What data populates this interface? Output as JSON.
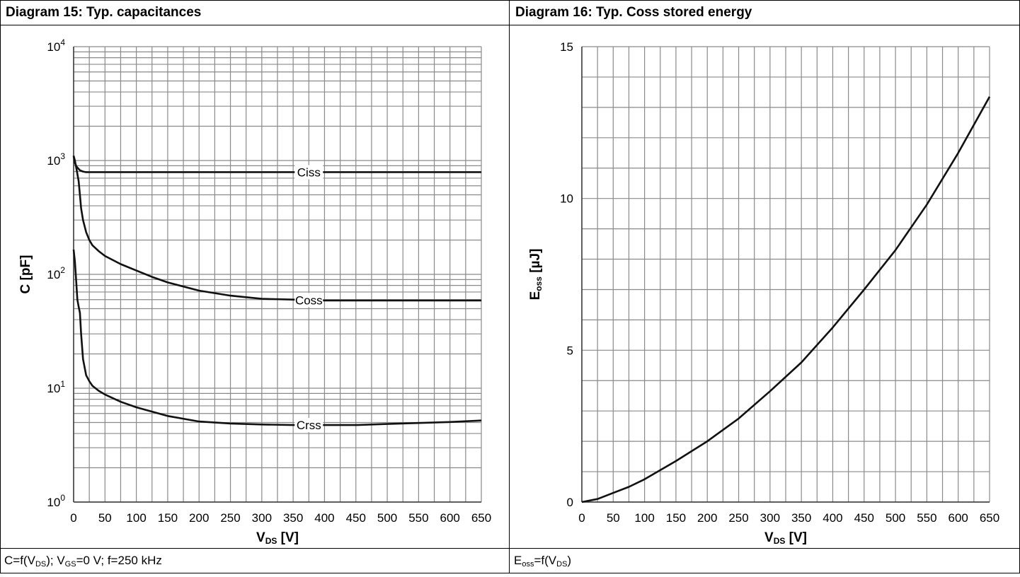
{
  "left_panel": {
    "title": "Diagram 15: Typ. capacitances",
    "caption": {
      "p1": "C=f(V",
      "sub1": "DS",
      "p2": "); V",
      "sub2": "GS",
      "p3": "=0 V; f=250 kHz"
    }
  },
  "right_panel": {
    "title": "Diagram 16: Typ. Coss stored energy",
    "caption": {
      "p1": "E",
      "sub1": "oss",
      "p2": "=f(V",
      "sub2": "DS",
      "p3": ")"
    }
  },
  "chart_data": [
    {
      "type": "line",
      "title": "Diagram 15: Typ. capacitances",
      "xlabel": {
        "main": "V",
        "sub": "DS",
        "rest": " [V]"
      },
      "ylabel": "C [pF]",
      "xlim": [
        0,
        650
      ],
      "ylim": [
        1,
        10000
      ],
      "yscale": "log",
      "grid": true,
      "x_ticks": [
        0,
        50,
        100,
        150,
        200,
        250,
        300,
        350,
        400,
        450,
        500,
        550,
        600,
        650
      ],
      "y_ticks": [
        {
          "base": "10",
          "exp": "0"
        },
        {
          "base": "10",
          "exp": "1"
        },
        {
          "base": "10",
          "exp": "2"
        },
        {
          "base": "10",
          "exp": "3"
        },
        {
          "base": "10",
          "exp": "4"
        }
      ],
      "series": [
        {
          "name": "Ciss",
          "label_x": 375,
          "x": [
            0,
            2,
            5,
            10,
            15,
            20,
            25,
            30,
            50,
            100,
            200,
            300,
            400,
            500,
            600,
            650
          ],
          "y": [
            1100,
            950,
            880,
            820,
            800,
            790,
            790,
            790,
            790,
            790,
            790,
            790,
            790,
            790,
            790,
            790
          ]
        },
        {
          "name": "Coss",
          "label_x": 375,
          "x": [
            0,
            2,
            5,
            8,
            10,
            12,
            15,
            20,
            25,
            30,
            40,
            50,
            75,
            100,
            125,
            150,
            200,
            250,
            300,
            350,
            400,
            450,
            500,
            550,
            600,
            650
          ],
          "y": [
            1100,
            1000,
            820,
            660,
            500,
            380,
            300,
            235,
            200,
            180,
            160,
            145,
            123,
            108,
            95,
            85,
            72,
            65,
            61,
            60,
            59,
            59,
            59,
            59,
            59,
            59
          ]
        },
        {
          "name": "Crss",
          "label_x": 375,
          "x": [
            0,
            2,
            4,
            6,
            8,
            10,
            12,
            15,
            20,
            25,
            30,
            40,
            50,
            75,
            100,
            150,
            200,
            250,
            300,
            350,
            400,
            450,
            500,
            550,
            600,
            650
          ],
          "y": [
            165,
            130,
            90,
            60,
            52,
            46,
            30,
            18,
            13,
            11.5,
            10.5,
            9.5,
            8.8,
            7.6,
            6.8,
            5.7,
            5.1,
            4.9,
            4.8,
            4.75,
            4.75,
            4.75,
            4.85,
            4.95,
            5.05,
            5.2
          ]
        }
      ]
    },
    {
      "type": "line",
      "title": "Diagram 16: Typ. Coss stored energy",
      "xlabel": {
        "main": "V",
        "sub": "DS",
        "rest": " [V]"
      },
      "ylabel": {
        "main": "E",
        "sub": "oss",
        "rest": " [µJ]"
      },
      "xlim": [
        0,
        650
      ],
      "ylim": [
        0,
        15
      ],
      "grid": true,
      "x_ticks": [
        0,
        50,
        100,
        150,
        200,
        250,
        300,
        350,
        400,
        450,
        500,
        550,
        600,
        650
      ],
      "y_ticks": [
        0,
        5,
        10,
        15
      ],
      "series": [
        {
          "x": [
            0,
            25,
            50,
            75,
            100,
            150,
            200,
            250,
            300,
            350,
            400,
            450,
            500,
            550,
            600,
            650
          ],
          "y": [
            0,
            0.1,
            0.3,
            0.5,
            0.75,
            1.35,
            2.0,
            2.75,
            3.65,
            4.6,
            5.75,
            7.0,
            8.3,
            9.8,
            11.5,
            13.35
          ]
        }
      ]
    }
  ]
}
